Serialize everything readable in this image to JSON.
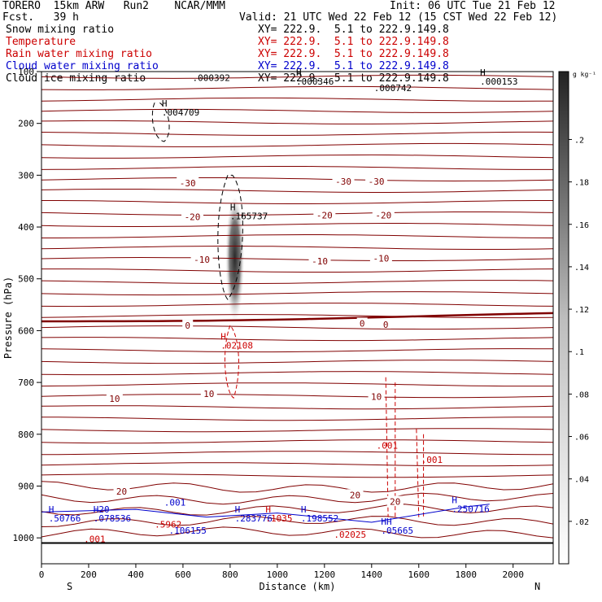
{
  "header": {
    "model": "TORERO  15km ARW   Run2    NCAR/MMM",
    "init": "Init: 06 UTC Tue 21 Feb 12",
    "fcst": "Fcst.   39 h",
    "valid": "Valid: 21 UTC Wed 22 Feb 12 (15 CST Wed 22 Feb 12)"
  },
  "fields": [
    {
      "name": "Snow mixing ratio",
      "xy": "XY= 222.9.  5.1 to 222.9.149.8",
      "color": "#000000"
    },
    {
      "name": "Temperature",
      "xy": "XY= 222.9.  5.1 to 222.9.149.8",
      "color": "#cc0000"
    },
    {
      "name": "Rain water mixing ratio",
      "xy": "XY= 222.9.  5.1 to 222.9.149.8",
      "color": "#cc0000"
    },
    {
      "name": "Cloud water mixing ratio",
      "xy": "XY= 222.9.  5.1 to 222.9.149.8",
      "color": "#0000cc"
    },
    {
      "name": "Cloud ice mixing ratio",
      "xy": "XY= 222.9.  5.1 to 222.9.149.8",
      "color": "#000000"
    }
  ],
  "chart_data": {
    "type": "cross-section contour",
    "xlabel": "Distance (km)",
    "ylabel": "Pressure (hPa)",
    "xlim": [
      0,
      2170
    ],
    "ylim": [
      1050,
      100
    ],
    "x_ticks": [
      0,
      200,
      400,
      600,
      800,
      1000,
      1200,
      1400,
      1600,
      1800,
      2000
    ],
    "y_ticks": [
      100,
      200,
      300,
      400,
      500,
      600,
      700,
      800,
      900,
      1000
    ],
    "end_labels": {
      "left": "S",
      "right": "N"
    },
    "colorbar": {
      "unit": "g kg⁻¹",
      "ticks": [
        ".02",
        ".04",
        ".06",
        ".08",
        ".1",
        ".12",
        ".14",
        ".16",
        ".18",
        ".2"
      ]
    },
    "temperature_labels": [
      {
        "value": "-30",
        "x": 620,
        "p": 315
      },
      {
        "value": "-30",
        "x": 1280,
        "p": 312
      },
      {
        "value": "-30",
        "x": 1420,
        "p": 312
      },
      {
        "value": "-20",
        "x": 640,
        "p": 380
      },
      {
        "value": "-20",
        "x": 1200,
        "p": 377
      },
      {
        "value": "-20",
        "x": 1450,
        "p": 377
      },
      {
        "value": "-10",
        "x": 680,
        "p": 463
      },
      {
        "value": "-10",
        "x": 1180,
        "p": 466
      },
      {
        "value": "-10",
        "x": 1440,
        "p": 460
      },
      {
        "value": "0",
        "x": 620,
        "p": 590
      },
      {
        "value": "0",
        "x": 1360,
        "p": 586
      },
      {
        "value": "0",
        "x": 1460,
        "p": 588
      },
      {
        "value": "10",
        "x": 310,
        "p": 731
      },
      {
        "value": "10",
        "x": 710,
        "p": 722
      },
      {
        "value": "10",
        "x": 1420,
        "p": 727
      },
      {
        "value": "20",
        "x": 340,
        "p": 910
      },
      {
        "value": "20",
        "x": 1330,
        "p": 917
      },
      {
        "value": "20",
        "x": 1500,
        "p": 930
      }
    ],
    "extrema": [
      {
        "label": "H",
        "value": ".004709",
        "x": 510,
        "p": 185,
        "color": "#000000"
      },
      {
        "label": "H",
        "value": ".165737",
        "x": 800,
        "p": 385,
        "color": "#000000"
      },
      {
        "label": "H",
        "value": ".02108",
        "x": 760,
        "p": 635,
        "color": "#cc0000"
      },
      {
        "label": "",
        "value": ".000392",
        "x": 640,
        "p": 118,
        "color": "#000000"
      },
      {
        "label": "H",
        "value": ".000346",
        "x": 1080,
        "p": 125,
        "color": "#000000"
      },
      {
        "label": "",
        "value": ".000742",
        "x": 1410,
        "p": 138,
        "color": "#000000"
      },
      {
        "label": "H",
        "value": ".000153",
        "x": 1860,
        "p": 125,
        "color": "#000000"
      },
      {
        "label": "",
        "value": ".001",
        "x": 1420,
        "p": 828,
        "color": "#cc0000"
      },
      {
        "label": "",
        "value": ".001",
        "x": 1610,
        "p": 855,
        "color": "#cc0000"
      },
      {
        "label": "",
        "value": ".001",
        "x": 520,
        "p": 938,
        "color": "#0000cc"
      },
      {
        "label": "H20",
        "value": ".078536",
        "x": 220,
        "p": 968,
        "color": "#0000cc"
      },
      {
        "label": "H",
        "value": ".50766",
        "x": 30,
        "p": 968,
        "color": "#0000cc"
      },
      {
        "label": "H",
        "value": ".283776",
        "x": 820,
        "p": 968,
        "color": "#0000cc"
      },
      {
        "label": "H",
        "value": ".1035",
        "x": 950,
        "p": 968,
        "color": "#cc0000"
      },
      {
        "label": "H",
        "value": ".198552",
        "x": 1100,
        "p": 968,
        "color": "#0000cc"
      },
      {
        "label": "",
        "value": ".5962",
        "x": 480,
        "p": 980,
        "color": "#cc0000"
      },
      {
        "label": "",
        "value": ".106155",
        "x": 540,
        "p": 992,
        "color": "#0000cc"
      },
      {
        "label": "",
        "value": ".02025",
        "x": 1240,
        "p": 1000,
        "color": "#cc0000"
      },
      {
        "label": "HH",
        "value": ".05665",
        "x": 1440,
        "p": 992,
        "color": "#0000cc"
      },
      {
        "label": "H",
        "value": ".250716",
        "x": 1740,
        "p": 950,
        "color": "#0000cc"
      },
      {
        "label": "",
        "value": ".001",
        "x": 180,
        "p": 1008,
        "color": "#cc0000"
      }
    ],
    "snow_core": {
      "x": 820,
      "p_top": 345,
      "p_bottom": 600,
      "max_g_per_kg": 0.165737
    }
  }
}
